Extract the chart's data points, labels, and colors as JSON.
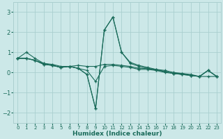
{
  "xlabel": "Humidex (Indice chaleur)",
  "x_values": [
    0,
    1,
    2,
    3,
    4,
    5,
    6,
    7,
    8,
    9,
    10,
    11,
    12,
    13,
    14,
    15,
    16,
    17,
    18,
    19,
    20,
    21,
    22,
    23
  ],
  "line1": [
    0.7,
    1.0,
    0.7,
    0.45,
    0.4,
    0.3,
    0.3,
    0.35,
    0.3,
    0.3,
    0.4,
    0.4,
    0.35,
    0.3,
    0.2,
    0.2,
    0.15,
    0.1,
    0.0,
    -0.05,
    -0.1,
    -0.2,
    -0.2,
    -0.2
  ],
  "line2": [
    0.7,
    0.7,
    0.6,
    0.45,
    0.35,
    0.25,
    0.3,
    0.2,
    0.1,
    -0.45,
    0.3,
    0.35,
    0.3,
    0.25,
    0.15,
    0.15,
    0.1,
    0.05,
    -0.05,
    -0.05,
    -0.15,
    -0.2,
    0.1,
    -0.2
  ],
  "line3": [
    0.7,
    0.7,
    0.6,
    0.4,
    0.35,
    0.25,
    0.3,
    0.2,
    -0.1,
    -1.8,
    2.1,
    2.75,
    1.0,
    0.5,
    0.35,
    0.25,
    0.15,
    0.05,
    -0.05,
    -0.1,
    -0.15,
    -0.2,
    0.1,
    -0.2
  ],
  "line4": [
    0.7,
    0.7,
    0.6,
    0.4,
    0.35,
    0.25,
    0.3,
    0.2,
    -0.1,
    -1.8,
    2.1,
    2.75,
    1.0,
    0.45,
    0.3,
    0.2,
    0.1,
    0.0,
    -0.05,
    -0.1,
    -0.15,
    -0.2,
    0.1,
    -0.2
  ],
  "line_color": "#1a6b5a",
  "bg_color": "#cce8e8",
  "grid_color": "#aacfcf",
  "ylim": [
    -2.5,
    3.5
  ],
  "yticks": [
    -2,
    -1,
    0,
    1,
    2,
    3
  ],
  "xticks": [
    0,
    1,
    2,
    3,
    4,
    5,
    6,
    7,
    8,
    9,
    10,
    11,
    12,
    13,
    14,
    15,
    16,
    17,
    18,
    19,
    20,
    21,
    22,
    23
  ]
}
